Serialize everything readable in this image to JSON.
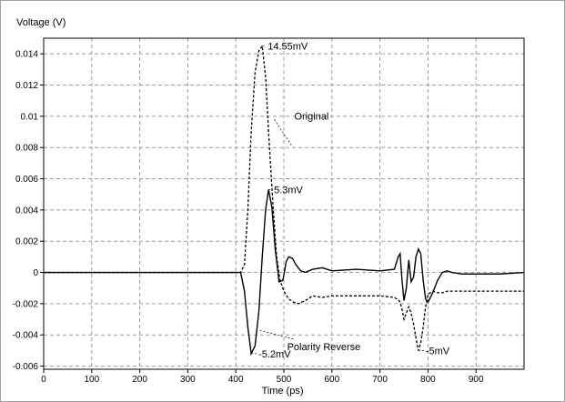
{
  "chart_data": {
    "type": "line",
    "ylabel": "Voltage (V)",
    "xlabel": "Time (ps)",
    "xlim": [
      0,
      1000
    ],
    "ylim": [
      -0.0062,
      0.015
    ],
    "xticks": [
      0,
      100,
      200,
      300,
      400,
      500,
      600,
      700,
      800,
      900
    ],
    "yticks": [
      -0.006,
      -0.004,
      -0.002,
      0,
      0.002,
      0.004,
      0.006,
      0.008,
      0.01,
      0.012,
      0.014
    ],
    "ytick_labels": [
      "-0.006",
      "-0.004",
      "-0.002",
      "0",
      "0.002",
      "0.004",
      "0.006",
      "0.008",
      "0.01",
      "0.012",
      "0.014"
    ],
    "grid": true,
    "series": [
      {
        "name": "Original",
        "style": "dashed",
        "x": [
          0,
          410,
          418,
          425,
          432,
          440,
          448,
          455,
          462,
          470,
          478,
          485,
          492,
          500,
          510,
          520,
          530,
          545,
          560,
          580,
          600,
          650,
          700,
          730,
          740,
          745,
          750,
          755,
          760,
          765,
          770,
          775,
          780,
          785,
          790,
          795,
          800,
          810,
          820,
          830,
          840,
          850,
          870,
          900,
          950,
          1000
        ],
        "y": [
          0,
          0,
          0.0005,
          0.004,
          0.009,
          0.0128,
          0.0142,
          0.0145,
          0.0125,
          0.008,
          0.004,
          0.001,
          -0.0005,
          -0.0012,
          -0.0017,
          -0.0019,
          -0.002,
          -0.0018,
          -0.0015,
          -0.0016,
          -0.0015,
          -0.0015,
          -0.0015,
          -0.0016,
          -0.0018,
          -0.0022,
          -0.003,
          -0.0026,
          -0.0022,
          -0.0026,
          -0.0033,
          -0.0042,
          -0.005,
          -0.0045,
          -0.0035,
          -0.0022,
          -0.0014,
          -0.0012,
          -0.0013,
          -0.0013,
          -0.0012,
          -0.0012,
          -0.0012,
          -0.0012,
          -0.0012,
          -0.0012
        ]
      },
      {
        "name": "Polarity Reverse",
        "style": "solid",
        "x": [
          0,
          410,
          418,
          425,
          432,
          440,
          448,
          455,
          462,
          468,
          475,
          482,
          490,
          498,
          505,
          510,
          518,
          525,
          535,
          545,
          560,
          580,
          600,
          650,
          700,
          730,
          738,
          742,
          746,
          750,
          755,
          760,
          765,
          770,
          775,
          780,
          785,
          790,
          795,
          800,
          810,
          820,
          830,
          840,
          850,
          870,
          900,
          950,
          1000
        ],
        "y": [
          0,
          0,
          -0.0012,
          -0.0035,
          -0.0052,
          -0.0047,
          -0.0025,
          0.001,
          0.004,
          0.0053,
          0.0042,
          0.0015,
          -0.0006,
          -0.0005,
          0.0007,
          0.001,
          0.0009,
          0.0005,
          0.0001,
          0,
          0.0002,
          0.0003,
          0.0001,
          0.0002,
          0.0001,
          0.0002,
          0.001,
          0.0012,
          -0.0005,
          -0.0018,
          -0.001,
          0.0008,
          -0.0006,
          -0.0003,
          0.001,
          0.0015,
          0.0012,
          -0.0005,
          -0.0017,
          -0.0019,
          -0.0013,
          -0.0005,
          0,
          0.0001,
          0,
          -0.0001,
          -0.0001,
          -0.0001,
          0
        ]
      }
    ],
    "annotations": [
      {
        "text": "14.55mV",
        "x": 455,
        "y": 0.0145
      },
      {
        "text": "Original",
        "x": 480,
        "y": 0.0098
      },
      {
        "text": "5.3mV",
        "x": 468,
        "y": 0.0053
      },
      {
        "text": "Polarity Reverse",
        "x": 450,
        "y": -0.0037
      },
      {
        "text": "-5.2mV",
        "x": 432,
        "y": -0.0052
      },
      {
        "text": "-5mV",
        "x": 780,
        "y": -0.005
      }
    ]
  }
}
